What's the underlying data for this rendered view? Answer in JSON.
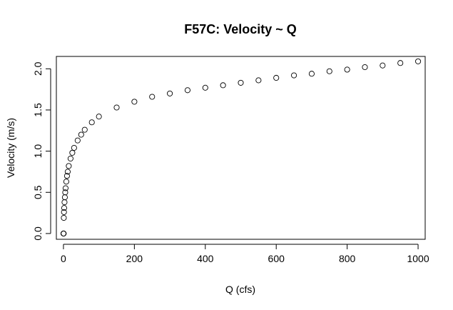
{
  "chart_data": {
    "type": "scatter",
    "title": "F57C: Velocity ~ Q",
    "xlabel": "Q (cfs)",
    "ylabel": "Velocity (m/s)",
    "xlim": [
      -20,
      1020
    ],
    "ylim": [
      -0.07,
      2.15
    ],
    "xticks": [
      0,
      200,
      400,
      600,
      800,
      1000
    ],
    "yticks": [
      0.0,
      0.5,
      1.0,
      1.5,
      2.0
    ],
    "xtick_labels": [
      "0",
      "200",
      "400",
      "600",
      "800",
      "1000"
    ],
    "ytick_labels": [
      "0.0",
      "0.5",
      "1.0",
      "1.5",
      "2.0"
    ],
    "grid": false,
    "marker": "open-circle",
    "series": [
      {
        "points": [
          [
            0,
            0.0
          ],
          [
            0.3,
            0.0
          ],
          [
            0.6,
            0.0
          ],
          [
            1,
            0.19
          ],
          [
            1.5,
            0.26
          ],
          [
            2,
            0.31
          ],
          [
            3,
            0.38
          ],
          [
            4,
            0.44
          ],
          [
            5,
            0.5
          ],
          [
            6,
            0.55
          ],
          [
            8,
            0.63
          ],
          [
            10,
            0.7
          ],
          [
            12,
            0.75
          ],
          [
            15,
            0.82
          ],
          [
            20,
            0.91
          ],
          [
            25,
            0.98
          ],
          [
            30,
            1.04
          ],
          [
            40,
            1.13
          ],
          [
            50,
            1.2
          ],
          [
            60,
            1.26
          ],
          [
            80,
            1.35
          ],
          [
            100,
            1.42
          ],
          [
            150,
            1.53
          ],
          [
            200,
            1.6
          ],
          [
            250,
            1.66
          ],
          [
            300,
            1.7
          ],
          [
            350,
            1.74
          ],
          [
            400,
            1.77
          ],
          [
            450,
            1.8
          ],
          [
            500,
            1.83
          ],
          [
            550,
            1.86
          ],
          [
            600,
            1.89
          ],
          [
            650,
            1.92
          ],
          [
            700,
            1.94
          ],
          [
            750,
            1.97
          ],
          [
            800,
            1.99
          ],
          [
            850,
            2.02
          ],
          [
            900,
            2.04
          ],
          [
            950,
            2.07
          ],
          [
            1000,
            2.09
          ]
        ]
      }
    ]
  }
}
